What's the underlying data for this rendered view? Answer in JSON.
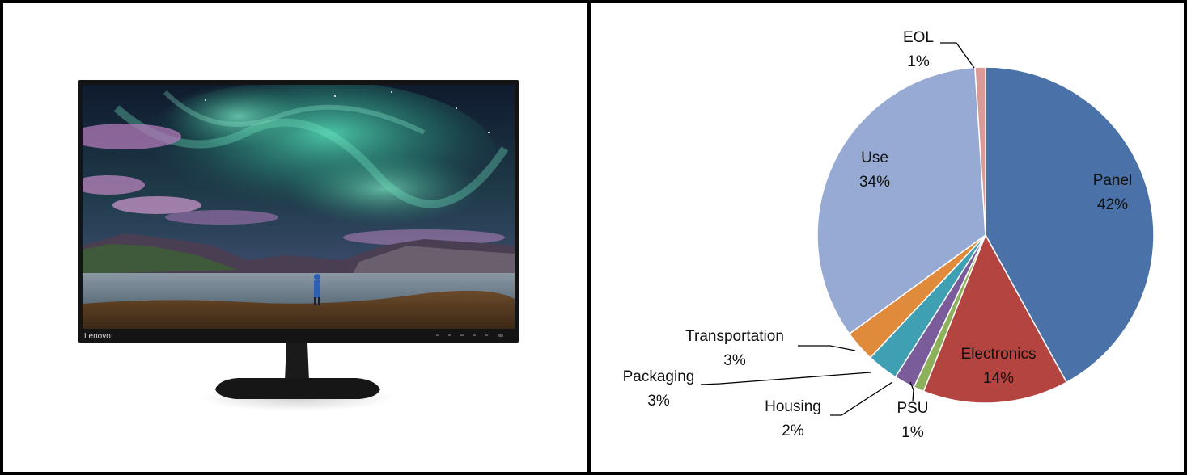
{
  "photo": {
    "brand_logo": "Lenovo",
    "colors": {
      "bezel": "#141414",
      "sky_top": "#0f1a2e",
      "aurora": "#3fd0a8",
      "clouds": "#b07ab8",
      "water": "#7d8f9a",
      "ground": "#5a3f24"
    }
  },
  "chart_data": {
    "type": "pie",
    "title": "",
    "slices": [
      {
        "label": "Panel",
        "value": 42,
        "pct_text": "42%",
        "color": "#4a72a8"
      },
      {
        "label": "Electronics",
        "value": 14,
        "pct_text": "14%",
        "color": "#b3443f"
      },
      {
        "label": "PSU",
        "value": 1,
        "pct_text": "1%",
        "color": "#8db05a"
      },
      {
        "label": "Housing",
        "value": 2,
        "pct_text": "2%",
        "color": "#7b5c9a"
      },
      {
        "label": "Packaging",
        "value": 3,
        "pct_text": "3%",
        "color": "#3ea0b2"
      },
      {
        "label": "Transportation",
        "value": 3,
        "pct_text": "3%",
        "color": "#e08a3c"
      },
      {
        "label": "Use",
        "value": 34,
        "pct_text": "34%",
        "color": "#97aad4"
      },
      {
        "label": "EOL",
        "value": 1,
        "pct_text": "1%",
        "color": "#d99a98"
      }
    ],
    "start_angle_deg": 0,
    "direction": "clockwise",
    "legend": "none",
    "data_labels": "category name and percent"
  }
}
